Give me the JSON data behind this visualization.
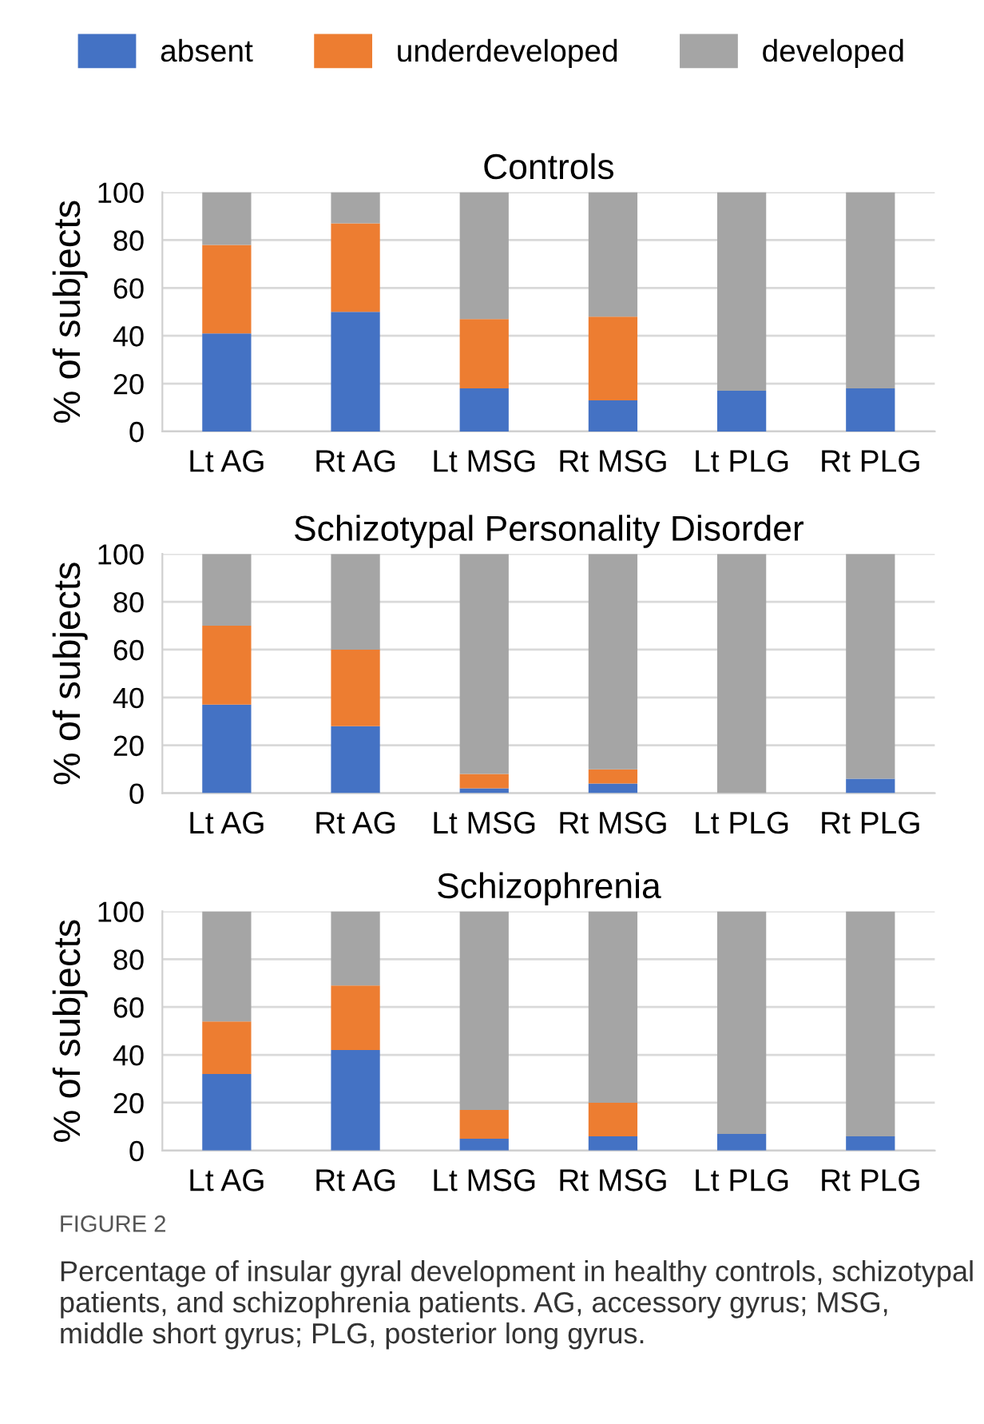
{
  "chart_data": [
    {
      "type": "bar",
      "stacked": true,
      "title": "Controls",
      "ylabel": "% of subjects",
      "categories": [
        "Lt AG",
        "Rt AG",
        "Lt MSG",
        "Rt MSG",
        "Lt PLG",
        "Rt PLG"
      ],
      "ylim": [
        0,
        100
      ],
      "yticks": [
        0,
        20,
        40,
        60,
        80,
        100
      ],
      "grid": "y",
      "legend": "top",
      "series": [
        {
          "name": "absent",
          "color": "#4472c4",
          "values": [
            41,
            50,
            18,
            13,
            17,
            18
          ]
        },
        {
          "name": "underdeveloped",
          "color": "#ed7d31",
          "values": [
            37,
            37,
            29,
            35,
            0,
            0
          ]
        },
        {
          "name": "developed",
          "color": "#a5a5a5",
          "values": [
            22,
            13,
            53,
            52,
            83,
            82
          ]
        }
      ]
    },
    {
      "type": "bar",
      "stacked": true,
      "title": "Schizotypal Personality Disorder",
      "ylabel": "% of subjects",
      "categories": [
        "Lt AG",
        "Rt AG",
        "Lt MSG",
        "Rt MSG",
        "Lt PLG",
        "Rt PLG"
      ],
      "ylim": [
        0,
        100
      ],
      "yticks": [
        0,
        20,
        40,
        60,
        80,
        100
      ],
      "grid": "y",
      "series": [
        {
          "color": "#4472c4",
          "values": [
            37,
            28,
            2,
            4,
            0,
            6
          ]
        },
        {
          "color": "#ed7d31",
          "values": [
            33,
            32,
            6,
            6,
            0,
            0
          ]
        },
        {
          "color": "#a5a5a5",
          "values": [
            30,
            40,
            92,
            90,
            100,
            94
          ]
        }
      ]
    },
    {
      "type": "bar",
      "stacked": true,
      "title": "Schizophrenia",
      "ylabel": "% of subjects",
      "categories": [
        "Lt AG",
        "Rt AG",
        "Lt MSG",
        "Rt MSG",
        "Lt PLG",
        "Rt PLG"
      ],
      "ylim": [
        0,
        100
      ],
      "yticks": [
        0,
        20,
        40,
        60,
        80,
        100
      ],
      "grid": "y",
      "annotations": [
        "FIGURE 2",
        "Percentage of insular gyral development in healthy controls, schizotypal patients, and schizophrenia patients. AG, accessory gyrus; MSG, middle short gyrus; PLG, posterior long gyrus."
      ],
      "series": [
        {
          "color": "#4472c4",
          "values": [
            32,
            42,
            5,
            6,
            7,
            6
          ]
        },
        {
          "color": "#ed7d31",
          "values": [
            22,
            27,
            12,
            14,
            0,
            0
          ]
        },
        {
          "color": "#a5a5a5",
          "values": [
            46,
            31,
            83,
            80,
            93,
            94
          ]
        }
      ]
    }
  ]
}
